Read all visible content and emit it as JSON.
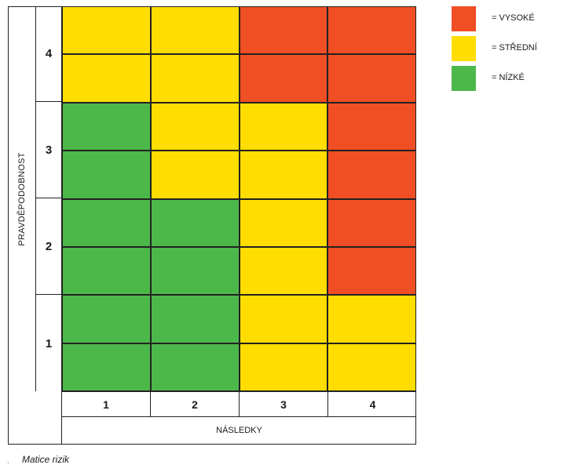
{
  "y_axis": {
    "title": "PRAVDĚPODOBNOST",
    "labels": [
      "4",
      "3",
      "2",
      "1"
    ]
  },
  "x_axis": {
    "title": "NÁSLEDKY",
    "labels": [
      "1",
      "2",
      "3",
      "4"
    ]
  },
  "levels": {
    "high": {
      "label": "= VYSOKÉ",
      "color": "#f04e24"
    },
    "medium": {
      "label": "= STŘEDNÍ",
      "color": "#ffdd00"
    },
    "low": {
      "label": "= NÍZKÉ",
      "color": "#4db84a"
    }
  },
  "matrix": [
    [
      "medium",
      "medium",
      "high",
      "high"
    ],
    [
      "low",
      "medium",
      "medium",
      "high"
    ],
    [
      "low",
      "low",
      "medium",
      "high"
    ],
    [
      "low",
      "low",
      "medium",
      "medium"
    ]
  ],
  "caption": "Matice rizik",
  "caption_mark": ","
}
